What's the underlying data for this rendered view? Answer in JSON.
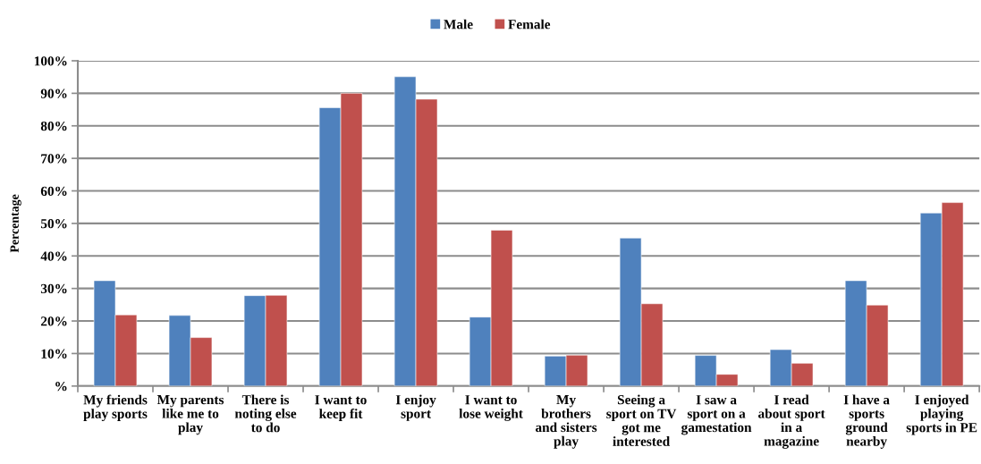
{
  "chart_data": {
    "type": "bar",
    "ylabel": "Percentage",
    "categories": [
      "My friends\nplay sports",
      "My parents\nlike me to\nplay",
      "There is\nnoting else\nto do",
      "I want to\nkeep fit",
      "I enjoy\nsport",
      "I want to\nlose weight",
      "My\nbrothers\nand sisters\nplay",
      "Seeing a\nsport on TV\ngot me\ninterested",
      "I saw a\nsport on a\ngamestation",
      "I read\nabout sport\nin a\nmagazine",
      "I have a\nsports\nground\nnearby",
      "I enjoyed\nplaying\nsports in PE"
    ],
    "series": [
      {
        "name": "Male",
        "color": "#4f81bd",
        "values": [
          32.4,
          21.7,
          27.8,
          85.6,
          95.1,
          21.2,
          9.2,
          45.5,
          9.4,
          11.2,
          32.4,
          53.2
        ]
      },
      {
        "name": "Female",
        "color": "#c0504d",
        "values": [
          21.9,
          14.9,
          27.9,
          90.0,
          88.2,
          47.9,
          9.5,
          25.3,
          3.6,
          7.0,
          24.9,
          56.4
        ]
      }
    ],
    "ylim": [
      0,
      100
    ],
    "yticks": [
      {
        "value": 0,
        "label": "%"
      },
      {
        "value": 10,
        "label": "10%"
      },
      {
        "value": 20,
        "label": "20%"
      },
      {
        "value": 30,
        "label": "30%"
      },
      {
        "value": 40,
        "label": "40%"
      },
      {
        "value": 50,
        "label": "50%"
      },
      {
        "value": 60,
        "label": "60%"
      },
      {
        "value": 70,
        "label": "70%"
      },
      {
        "value": 80,
        "label": "80%"
      },
      {
        "value": 90,
        "label": "90%"
      },
      {
        "value": 100,
        "label": "100%"
      }
    ],
    "grid": "y",
    "legend": "top"
  }
}
